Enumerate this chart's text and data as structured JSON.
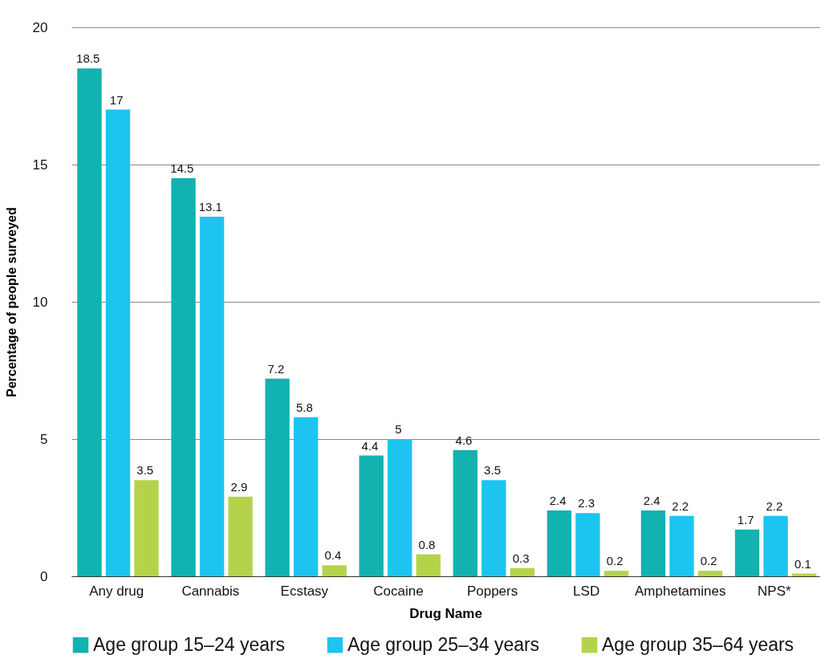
{
  "chart_data": {
    "type": "bar",
    "xlabel": "Drug Name",
    "ylabel": "Percentage of people surveyed",
    "categories": [
      "Any drug",
      "Cannabis",
      "Ecstasy",
      "Cocaine",
      "Poppers",
      "LSD",
      "Amphetamines",
      "NPS*"
    ],
    "series": [
      {
        "name": "Age group 15–24 years",
        "color": "#12b2b0",
        "values": [
          18.5,
          14.5,
          7.2,
          4.4,
          4.6,
          2.4,
          2.4,
          1.7
        ]
      },
      {
        "name": "Age group 25–34 years",
        "color": "#1dc4f0",
        "values": [
          17,
          13.1,
          5.8,
          5,
          3.5,
          2.3,
          2.2,
          2.2
        ]
      },
      {
        "name": "Age group 35–64 years",
        "color": "#b5d34a",
        "values": [
          3.5,
          2.9,
          0.4,
          0.8,
          0.3,
          0.2,
          0.2,
          0.1
        ]
      }
    ],
    "ylim": [
      0,
      20
    ],
    "yticks": [
      0,
      5,
      10,
      15,
      20
    ],
    "grid": "y",
    "legend": "bottom",
    "data_labels": true
  }
}
